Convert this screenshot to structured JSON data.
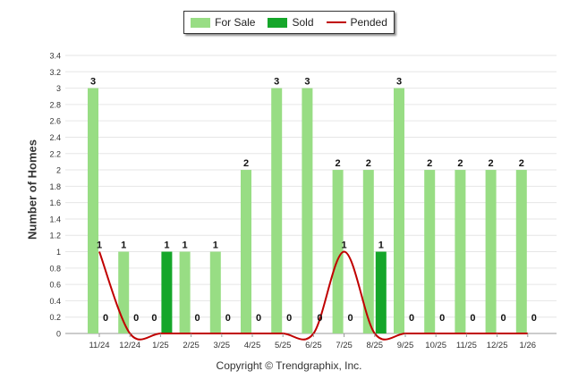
{
  "chart_data": {
    "type": "bar",
    "title": "",
    "xlabel": "",
    "ylabel": "Number of Homes",
    "ylim": [
      0,
      3.4
    ],
    "yticks": [
      "0",
      "0.2",
      "0.4",
      "0.6",
      "0.8",
      "1",
      "1.2",
      "1.4",
      "1.6",
      "1.8",
      "2",
      "2.2",
      "2.4",
      "2.6",
      "2.8",
      "3",
      "3.2",
      "3.4"
    ],
    "categories": [
      "11/24",
      "12/24",
      "1/25",
      "2/25",
      "3/25",
      "4/25",
      "5/25",
      "6/25",
      "7/25",
      "8/25",
      "9/25",
      "10/25",
      "11/25",
      "12/25",
      "1/26"
    ],
    "series": [
      {
        "name": "For Sale",
        "kind": "bar",
        "color": "#98dd84",
        "values": [
          3,
          1,
          0,
          1,
          1,
          2,
          3,
          3,
          2,
          2,
          3,
          2,
          2,
          2,
          2
        ]
      },
      {
        "name": "Sold",
        "kind": "bar",
        "color": "#15a62a",
        "values": [
          0,
          0,
          1,
          0,
          0,
          0,
          0,
          0,
          0,
          1,
          0,
          0,
          0,
          0,
          0
        ]
      },
      {
        "name": "Pended",
        "kind": "line",
        "color": "#c00000",
        "values": [
          1,
          0,
          0,
          0,
          0,
          0,
          0,
          0,
          1,
          0,
          0,
          0,
          0,
          0,
          0
        ]
      }
    ],
    "legend": [
      "For Sale",
      "Sold",
      "Pended"
    ],
    "legend_position": "top-center",
    "grid": true
  },
  "copyright": "Copyright © Trendgraphix, Inc."
}
